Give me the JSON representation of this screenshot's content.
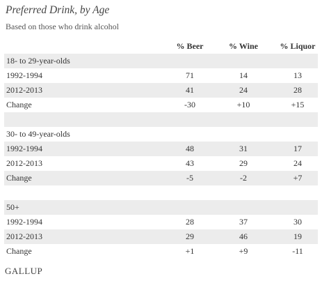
{
  "chart_data": {
    "type": "table",
    "title": "Preferred Drink, by Age",
    "subtitle": "Based on those who drink alcohol",
    "columns": [
      "% Beer",
      "% Wine",
      "% Liquor"
    ],
    "groups": [
      {
        "name": "18- to 29-year-olds",
        "rows": [
          {
            "label": "1992-1994",
            "values": [
              "71",
              "14",
              "13"
            ]
          },
          {
            "label": "2012-2013",
            "values": [
              "41",
              "24",
              "28"
            ]
          },
          {
            "label": "Change",
            "values": [
              "-30",
              "+10",
              "+15"
            ]
          }
        ]
      },
      {
        "name": "30- to 49-year-olds",
        "rows": [
          {
            "label": "1992-1994",
            "values": [
              "48",
              "31",
              "17"
            ]
          },
          {
            "label": "2012-2013",
            "values": [
              "43",
              "29",
              "24"
            ]
          },
          {
            "label": "Change",
            "values": [
              "-5",
              "-2",
              "+7"
            ]
          }
        ]
      },
      {
        "name": "50+",
        "rows": [
          {
            "label": "1992-1994",
            "values": [
              "28",
              "37",
              "30"
            ]
          },
          {
            "label": "2012-2013",
            "values": [
              "29",
              "46",
              "19"
            ]
          },
          {
            "label": "Change",
            "values": [
              "+1",
              "+9",
              "-11"
            ]
          }
        ]
      }
    ]
  },
  "source_logo": "GALLUP"
}
